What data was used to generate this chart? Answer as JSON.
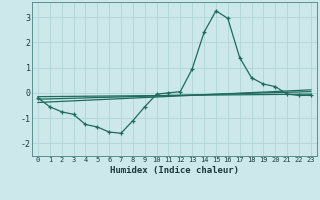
{
  "xlabel": "Humidex (Indice chaleur)",
  "background_color": "#cde8ea",
  "grid_color": "#b0d4d6",
  "line_color": "#1e6b5e",
  "xlim": [
    -0.5,
    23.5
  ],
  "ylim": [
    -2.5,
    3.6
  ],
  "yticks": [
    -2,
    -1,
    0,
    1,
    2,
    3
  ],
  "xticks": [
    0,
    1,
    2,
    3,
    4,
    5,
    6,
    7,
    8,
    9,
    10,
    11,
    12,
    13,
    14,
    15,
    16,
    17,
    18,
    19,
    20,
    21,
    22,
    23
  ],
  "main_x": [
    0,
    1,
    2,
    3,
    4,
    5,
    6,
    7,
    8,
    9,
    10,
    11,
    12,
    13,
    14,
    15,
    16,
    17,
    18,
    19,
    20,
    21,
    22,
    23
  ],
  "main_y": [
    -0.2,
    -0.55,
    -0.75,
    -0.85,
    -1.25,
    -1.35,
    -1.55,
    -1.6,
    -1.1,
    -0.55,
    -0.05,
    0.0,
    0.05,
    0.95,
    2.4,
    3.25,
    2.95,
    1.4,
    0.6,
    0.35,
    0.25,
    -0.05,
    -0.1,
    -0.1
  ],
  "line1_x": [
    0,
    23
  ],
  "line1_y": [
    -0.15,
    -0.05
  ],
  "line2_x": [
    0,
    23
  ],
  "line2_y": [
    -0.25,
    0.05
  ],
  "line3_x": [
    0,
    23
  ],
  "line3_y": [
    -0.38,
    0.12
  ]
}
